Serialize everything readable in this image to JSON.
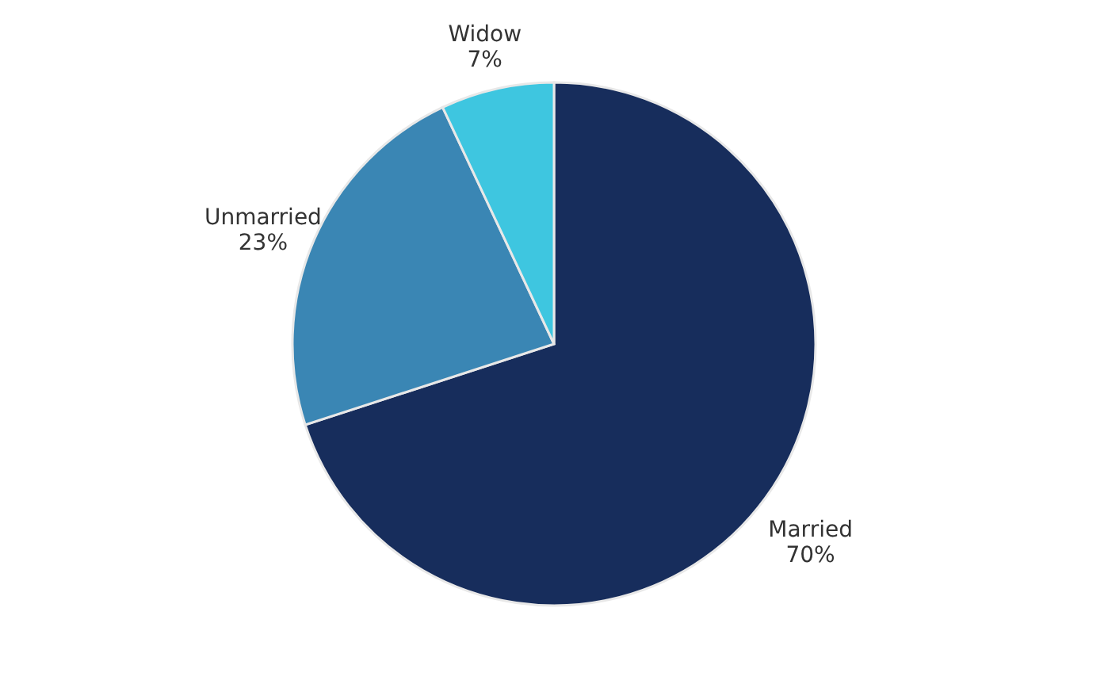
{
  "chart_data": {
    "type": "pie",
    "categories": [
      "Married",
      "Unmarried",
      "Widow"
    ],
    "values": [
      70,
      23,
      7
    ],
    "colors": [
      "#172d5c",
      "#3a86b4",
      "#3ec6e0"
    ],
    "value_labels": [
      "70%",
      "23%",
      "7%"
    ],
    "legend": false
  }
}
